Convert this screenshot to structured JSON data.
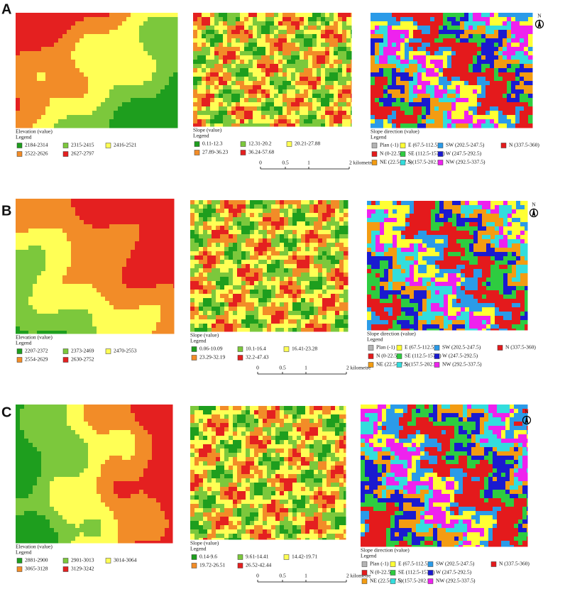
{
  "rows": [
    {
      "label": "A",
      "elevation": {
        "title": "Elevation (value)",
        "legend_title": "Legend",
        "items": [
          {
            "label": "2184-2314",
            "color": "#1e9e1e"
          },
          {
            "label": "2315-2415",
            "color": "#7cc83c"
          },
          {
            "label": "2416-2521",
            "color": "#ffff55"
          },
          {
            "label": "2522-2626",
            "color": "#f28c28"
          },
          {
            "label": "2627-2797",
            "color": "#e42020"
          }
        ]
      },
      "slope": {
        "title": "Slope (value)",
        "legend_title": "Legend",
        "items": [
          {
            "label": "0.11-12.3",
            "color": "#1e9e1e"
          },
          {
            "label": "12.31-20.2",
            "color": "#7cc83c"
          },
          {
            "label": "20.21-27.88",
            "color": "#ffff55"
          },
          {
            "label": "27.89-36.23",
            "color": "#f28c28"
          },
          {
            "label": "36.24-57.68",
            "color": "#e42020"
          }
        ],
        "scale": [
          "0",
          "0.5",
          "1",
          "2 kilometre"
        ]
      },
      "aspect": {
        "title": "Slope direction (value)",
        "legend_title": "Legend",
        "north": "N",
        "items": [
          {
            "label": "Plan (-1)",
            "color": "#b4b4b4"
          },
          {
            "label": "E (67.5-112.5)",
            "color": "#ffff33"
          },
          {
            "label": "SW (202.5-247.5)",
            "color": "#2b9be8"
          },
          {
            "label": "N (337.5-360)",
            "color": "#e41a1c"
          },
          {
            "label": "N (0-22.5)",
            "color": "#e41a1c"
          },
          {
            "label": "SE (112.5-157.5)",
            "color": "#2ecc40"
          },
          {
            "label": "W (247.5-292.5)",
            "color": "#1a1ad0"
          },
          {
            "label": "NE (22.5-67.5)",
            "color": "#f39c12"
          },
          {
            "label": "S (157.5-202.5)",
            "color": "#33dddd"
          },
          {
            "label": "NW (292.5-337.5)",
            "color": "#ee22ee"
          }
        ]
      }
    },
    {
      "label": "B",
      "elevation": {
        "title": "Elevation (value)",
        "legend_title": "Legend",
        "items": [
          {
            "label": "2207-2372",
            "color": "#1e9e1e"
          },
          {
            "label": "2373-2469",
            "color": "#7cc83c"
          },
          {
            "label": "2470-2553",
            "color": "#ffff55"
          },
          {
            "label": "2554-2629",
            "color": "#f28c28"
          },
          {
            "label": "2630-2752",
            "color": "#e42020"
          }
        ]
      },
      "slope": {
        "title": "Slope (value)",
        "legend_title": "Legend",
        "items": [
          {
            "label": "0.06-10.09",
            "color": "#1e9e1e"
          },
          {
            "label": "10.1-16.4",
            "color": "#7cc83c"
          },
          {
            "label": "16.41-23.28",
            "color": "#ffff55"
          },
          {
            "label": "23.29-32.19",
            "color": "#f28c28"
          },
          {
            "label": "32.2-47.43",
            "color": "#e42020"
          }
        ],
        "scale": [
          "0",
          "0.5",
          "1",
          "2 kilometre"
        ]
      },
      "aspect": {
        "title": "Slope direction (value)",
        "legend_title": "Legend",
        "north": "N",
        "items": [
          {
            "label": "Plan (-1)",
            "color": "#b4b4b4"
          },
          {
            "label": "E (67.5-112.5)",
            "color": "#ffff33"
          },
          {
            "label": "SW (202.5-247.5)",
            "color": "#2b9be8"
          },
          {
            "label": "N (337.5-360)",
            "color": "#e41a1c"
          },
          {
            "label": "N (0-22.5)",
            "color": "#e41a1c"
          },
          {
            "label": "SE (112.5-157.5)",
            "color": "#2ecc40"
          },
          {
            "label": "W (247.5-292.5)",
            "color": "#1a1ad0"
          },
          {
            "label": "NE (22.5-67.5)",
            "color": "#f39c12"
          },
          {
            "label": "S (157.5-202.5)",
            "color": "#33dddd"
          },
          {
            "label": "NW (292.5-337.5)",
            "color": "#ee22ee"
          }
        ]
      }
    },
    {
      "label": "C",
      "elevation": {
        "title": "Elevation (value)",
        "legend_title": "Legend",
        "items": [
          {
            "label": "2881-2900",
            "color": "#1e9e1e"
          },
          {
            "label": "2901-3013",
            "color": "#7cc83c"
          },
          {
            "label": "3014-3064",
            "color": "#ffff55"
          },
          {
            "label": "3065-3128",
            "color": "#f28c28"
          },
          {
            "label": "3129-3242",
            "color": "#e42020"
          }
        ]
      },
      "slope": {
        "title": "Slope (value)",
        "legend_title": "Legend",
        "items": [
          {
            "label": "0.14-9.6",
            "color": "#1e9e1e"
          },
          {
            "label": "9.61-14.41",
            "color": "#7cc83c"
          },
          {
            "label": "14.42-19.71",
            "color": "#ffff55"
          },
          {
            "label": "19.72-26.51",
            "color": "#f28c28"
          },
          {
            "label": "26.52-42.44",
            "color": "#e42020"
          }
        ],
        "scale": [
          "0",
          "0.5",
          "1",
          "2 kilometre"
        ]
      },
      "aspect": {
        "title": "Slope direction (value)",
        "legend_title": "Legend",
        "north": "N",
        "items": [
          {
            "label": "Plan (-1)",
            "color": "#b4b4b4"
          },
          {
            "label": "E (67.5-112.5)",
            "color": "#ffff33"
          },
          {
            "label": "SW (202.5-247.5)",
            "color": "#2b9be8"
          },
          {
            "label": "N (337.5-360)",
            "color": "#e41a1c"
          },
          {
            "label": "N (0-22.5)",
            "color": "#e41a1c"
          },
          {
            "label": "SE (112.5-157.5)",
            "color": "#2ecc40"
          },
          {
            "label": "W (247.5-292.5)",
            "color": "#1a1ad0"
          },
          {
            "label": "NE (22.5-67.5)",
            "color": "#f39c12"
          },
          {
            "label": "S (157.5-202.5)",
            "color": "#33dddd"
          },
          {
            "label": "NW (292.5-337.5)",
            "color": "#ee22ee"
          }
        ]
      }
    }
  ]
}
